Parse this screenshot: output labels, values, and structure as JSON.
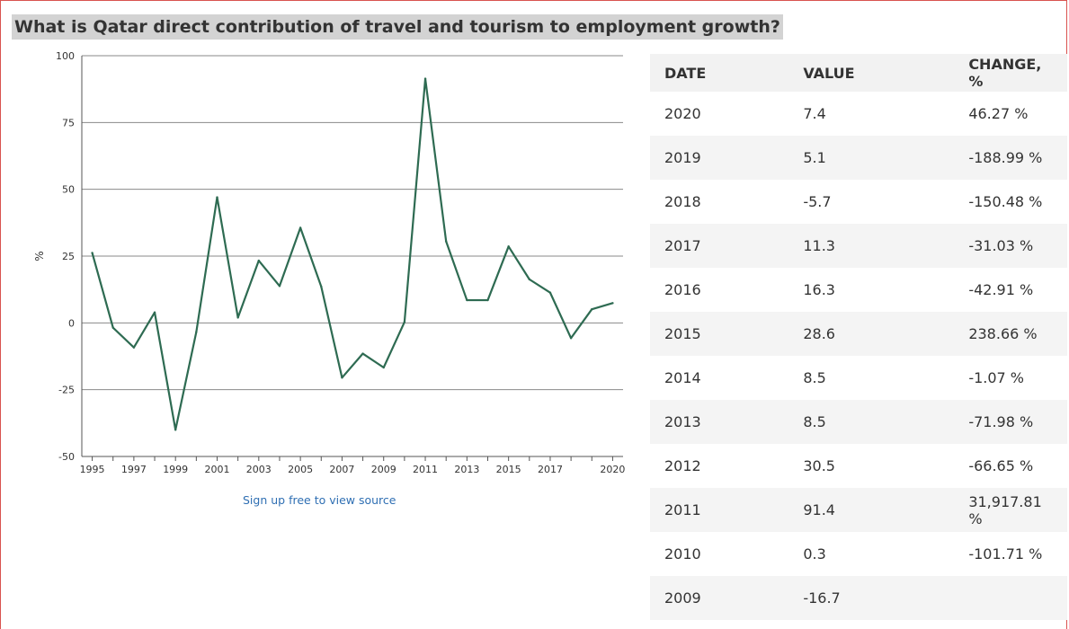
{
  "title": "What is Qatar direct contribution of travel and tourism to employment growth?",
  "source_link": "Sign up free to view source",
  "chart_data": {
    "type": "line",
    "ylabel": "%",
    "ylim": [
      -50,
      100
    ],
    "yticks": [
      -50,
      -25,
      0,
      25,
      50,
      75,
      100
    ],
    "x_tick_labels": [
      "1995",
      "1997",
      "1999",
      "2001",
      "2003",
      "2005",
      "2007",
      "2009",
      "2011",
      "2013",
      "2015",
      "2017",
      "2020"
    ],
    "grid": "horizontal",
    "color": "#2e6b52",
    "x": [
      1995,
      1996,
      1997,
      1998,
      1999,
      2000,
      2001,
      2002,
      2003,
      2004,
      2005,
      2006,
      2007,
      2008,
      2009,
      2010,
      2011,
      2012,
      2013,
      2014,
      2015,
      2016,
      2017,
      2018,
      2019,
      2020
    ],
    "values": [
      26.2,
      -1.8,
      -9.2,
      3.9,
      -40.0,
      -3.4,
      47.0,
      2.0,
      23.3,
      13.8,
      35.6,
      13.6,
      -20.5,
      -11.5,
      -16.7,
      0.3,
      91.4,
      30.5,
      8.5,
      8.5,
      28.6,
      16.3,
      11.3,
      -5.7,
      5.1,
      7.4
    ]
  },
  "table": {
    "headers": [
      "DATE",
      "VALUE",
      "CHANGE, %"
    ],
    "rows": [
      [
        "2020",
        "7.4",
        "46.27 %"
      ],
      [
        "2019",
        "5.1",
        "-188.99 %"
      ],
      [
        "2018",
        "-5.7",
        "-150.48 %"
      ],
      [
        "2017",
        "11.3",
        "-31.03 %"
      ],
      [
        "2016",
        "16.3",
        "-42.91 %"
      ],
      [
        "2015",
        "28.6",
        "238.66 %"
      ],
      [
        "2014",
        "8.5",
        "-1.07 %"
      ],
      [
        "2013",
        "8.5",
        "-71.98 %"
      ],
      [
        "2012",
        "30.5",
        "-66.65 %"
      ],
      [
        "2011",
        "91.4",
        "31,917.81 %"
      ],
      [
        "2010",
        "0.3",
        "-101.71 %"
      ],
      [
        "2009",
        "-16.7",
        ""
      ]
    ]
  }
}
